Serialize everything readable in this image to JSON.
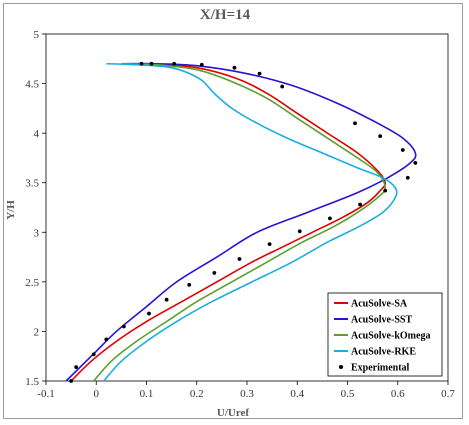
{
  "chart_data": {
    "type": "line",
    "title": "X/H=14",
    "xlabel": "U/Uref",
    "ylabel": "Y/H",
    "xlim": [
      -0.1,
      0.7
    ],
    "ylim": [
      1.5,
      5
    ],
    "xticks": [
      "-0.1",
      "0",
      "0.1",
      "0.2",
      "0.3",
      "0.4",
      "0.5",
      "0.6",
      "0.7"
    ],
    "yticks": [
      "1.5",
      "2",
      "2.5",
      "3",
      "3.5",
      "4",
      "4.5",
      "5"
    ],
    "xtick_values": [
      -0.1,
      0,
      0.1,
      0.2,
      0.3,
      0.4,
      0.5,
      0.6,
      0.7
    ],
    "ytick_values": [
      1.5,
      2,
      2.5,
      3,
      3.5,
      4,
      4.5,
      5
    ],
    "grid": false,
    "legend": "bottom-right",
    "series": [
      {
        "name": "AcuSolve-SA",
        "color": "#e00000",
        "style": "line",
        "points": [
          [
            -0.05,
            1.5
          ],
          [
            -0.01,
            1.7
          ],
          [
            0.04,
            1.9
          ],
          [
            0.1,
            2.1
          ],
          [
            0.17,
            2.3
          ],
          [
            0.24,
            2.5
          ],
          [
            0.31,
            2.7
          ],
          [
            0.37,
            2.85
          ],
          [
            0.43,
            3.0
          ],
          [
            0.49,
            3.15
          ],
          [
            0.54,
            3.3
          ],
          [
            0.565,
            3.42
          ],
          [
            0.575,
            3.5
          ],
          [
            0.56,
            3.62
          ],
          [
            0.52,
            3.8
          ],
          [
            0.46,
            4.0
          ],
          [
            0.4,
            4.2
          ],
          [
            0.34,
            4.4
          ],
          [
            0.28,
            4.55
          ],
          [
            0.2,
            4.66
          ],
          [
            0.12,
            4.69
          ],
          [
            0.05,
            4.7
          ]
        ]
      },
      {
        "name": "AcuSolve-SST",
        "color": "#2a12d6",
        "style": "line",
        "points": [
          [
            -0.06,
            1.5
          ],
          [
            -0.03,
            1.65
          ],
          [
            0.0,
            1.8
          ],
          [
            0.04,
            2.0
          ],
          [
            0.1,
            2.25
          ],
          [
            0.16,
            2.5
          ],
          [
            0.24,
            2.75
          ],
          [
            0.32,
            3.0
          ],
          [
            0.42,
            3.2
          ],
          [
            0.52,
            3.4
          ],
          [
            0.58,
            3.55
          ],
          [
            0.625,
            3.7
          ],
          [
            0.635,
            3.8
          ],
          [
            0.61,
            3.95
          ],
          [
            0.56,
            4.1
          ],
          [
            0.48,
            4.3
          ],
          [
            0.39,
            4.48
          ],
          [
            0.3,
            4.6
          ],
          [
            0.2,
            4.68
          ],
          [
            0.12,
            4.7
          ],
          [
            0.05,
            4.7
          ]
        ]
      },
      {
        "name": "AcuSolve-kOmega",
        "color": "#5aa02c",
        "style": "line",
        "points": [
          [
            -0.005,
            1.5
          ],
          [
            0.03,
            1.7
          ],
          [
            0.08,
            1.9
          ],
          [
            0.14,
            2.1
          ],
          [
            0.2,
            2.3
          ],
          [
            0.27,
            2.5
          ],
          [
            0.34,
            2.7
          ],
          [
            0.41,
            2.9
          ],
          [
            0.47,
            3.05
          ],
          [
            0.52,
            3.2
          ],
          [
            0.56,
            3.35
          ],
          [
            0.575,
            3.45
          ],
          [
            0.56,
            3.6
          ],
          [
            0.52,
            3.75
          ],
          [
            0.46,
            3.95
          ],
          [
            0.4,
            4.15
          ],
          [
            0.34,
            4.35
          ],
          [
            0.27,
            4.52
          ],
          [
            0.2,
            4.64
          ],
          [
            0.12,
            4.69
          ],
          [
            0.05,
            4.7
          ]
        ]
      },
      {
        "name": "AcuSolve-RKE",
        "color": "#1aaee0",
        "style": "line",
        "points": [
          [
            0.015,
            1.5
          ],
          [
            0.05,
            1.7
          ],
          [
            0.1,
            1.9
          ],
          [
            0.16,
            2.1
          ],
          [
            0.23,
            2.3
          ],
          [
            0.31,
            2.5
          ],
          [
            0.39,
            2.7
          ],
          [
            0.46,
            2.9
          ],
          [
            0.52,
            3.05
          ],
          [
            0.57,
            3.2
          ],
          [
            0.595,
            3.35
          ],
          [
            0.595,
            3.45
          ],
          [
            0.57,
            3.55
          ],
          [
            0.52,
            3.65
          ],
          [
            0.45,
            3.8
          ],
          [
            0.38,
            3.95
          ],
          [
            0.32,
            4.1
          ],
          [
            0.27,
            4.25
          ],
          [
            0.235,
            4.4
          ],
          [
            0.205,
            4.55
          ],
          [
            0.15,
            4.66
          ],
          [
            0.08,
            4.69
          ],
          [
            0.02,
            4.7
          ]
        ]
      },
      {
        "name": "Experimental",
        "color": "#000000",
        "style": "markers",
        "points": [
          [
            -0.05,
            1.5
          ],
          [
            -0.04,
            1.64
          ],
          [
            -0.005,
            1.77
          ],
          [
            0.02,
            1.92
          ],
          [
            0.055,
            2.05
          ],
          [
            0.105,
            2.18
          ],
          [
            0.14,
            2.32
          ],
          [
            0.185,
            2.47
          ],
          [
            0.235,
            2.59
          ],
          [
            0.285,
            2.73
          ],
          [
            0.345,
            2.88
          ],
          [
            0.405,
            3.01
          ],
          [
            0.465,
            3.14
          ],
          [
            0.525,
            3.28
          ],
          [
            0.575,
            3.42
          ],
          [
            0.62,
            3.55
          ],
          [
            0.635,
            3.7
          ],
          [
            0.61,
            3.83
          ],
          [
            0.565,
            3.97
          ],
          [
            0.515,
            4.1
          ],
          [
            0.37,
            4.47
          ],
          [
            0.325,
            4.6
          ],
          [
            0.275,
            4.66
          ],
          [
            0.21,
            4.69
          ],
          [
            0.155,
            4.7
          ],
          [
            0.11,
            4.7
          ],
          [
            0.09,
            4.7
          ]
        ]
      }
    ]
  }
}
